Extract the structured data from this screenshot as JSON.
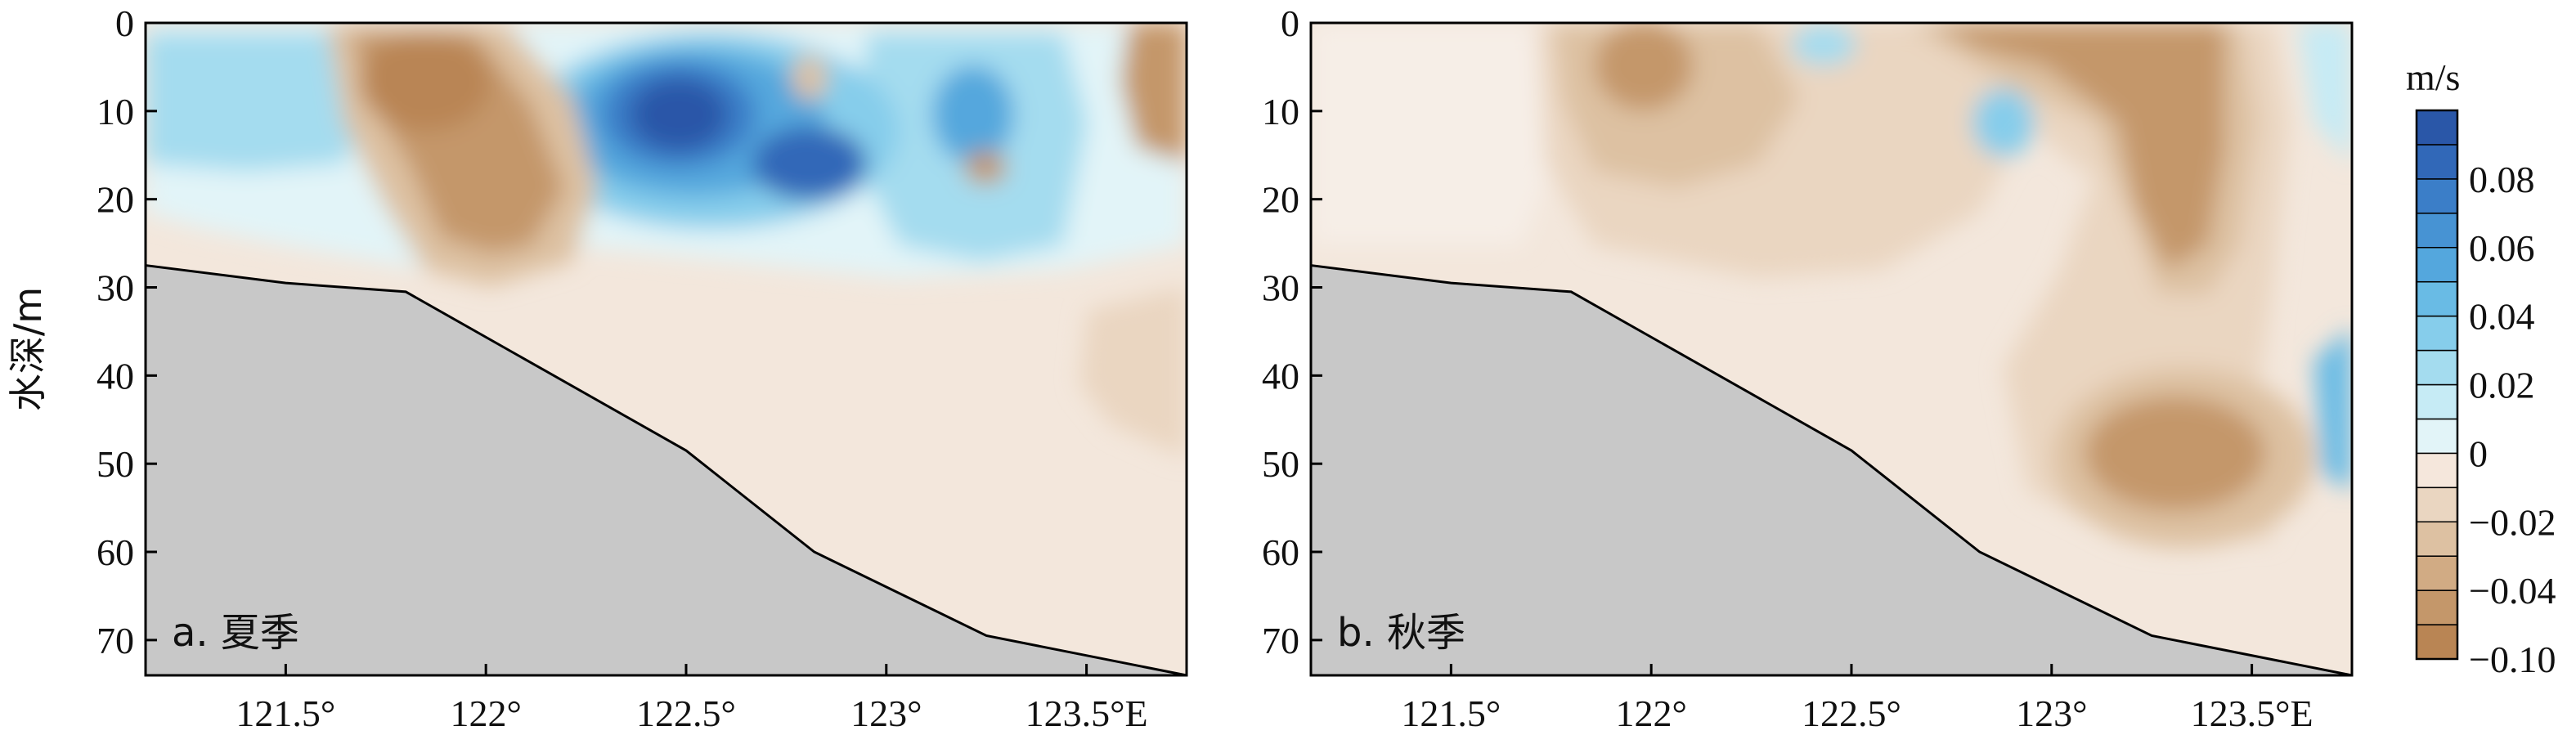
{
  "chart_data": [
    {
      "type": "heatmap",
      "panel_label": "a. 夏季",
      "ylabel": "水深/m",
      "xlabel": "",
      "xlim": [
        121.15,
        123.75
      ],
      "ylim": [
        0,
        74
      ],
      "x_tick_labels": [
        "121.5°",
        "122°",
        "122.5°",
        "123°",
        "123.5°E"
      ],
      "x_ticks": [
        121.5,
        122.0,
        122.5,
        123.0,
        123.5
      ],
      "y_tick_labels": [
        "0",
        "10",
        "20",
        "30",
        "40",
        "50",
        "60",
        "70"
      ],
      "y_ticks": [
        0,
        10,
        20,
        30,
        40,
        50,
        60,
        70
      ],
      "seafloor": {
        "x": [
          121.15,
          121.5,
          121.8,
          122.15,
          122.5,
          122.82,
          123.25,
          123.75
        ],
        "depth": [
          27.5,
          29.5,
          30.5,
          39.5,
          48.5,
          60,
          69.5,
          74
        ]
      },
      "value_unit": "m/s",
      "value_centers": [
        {
          "x": 122.5,
          "depth": 10,
          "value": 0.09
        },
        {
          "x": 122.82,
          "depth": 16,
          "value": 0.08
        },
        {
          "x": 123.25,
          "depth": 11,
          "value": 0.05
        },
        {
          "x": 122.25,
          "depth": 4,
          "value": 0.03
        },
        {
          "x": 121.25,
          "depth": 10,
          "value": 0.02
        },
        {
          "x": 123.25,
          "depth": 25,
          "value": 0.02
        },
        {
          "x": 121.95,
          "depth": 10,
          "value": -0.04
        },
        {
          "x": 122.18,
          "depth": 20,
          "value": -0.04
        },
        {
          "x": 123.7,
          "depth": 8,
          "value": -0.04
        },
        {
          "x": 123.25,
          "depth": 16,
          "value": -0.03
        },
        {
          "x": 121.9,
          "depth": 25,
          "value": -0.02
        },
        {
          "x": 123.65,
          "depth": 40,
          "value": -0.01
        }
      ]
    },
    {
      "type": "heatmap",
      "panel_label": "b. 秋季",
      "ylabel": "",
      "xlabel": "",
      "xlim": [
        121.15,
        123.75
      ],
      "ylim": [
        0,
        74
      ],
      "x_tick_labels": [
        "121.5°",
        "122°",
        "122.5°",
        "123°",
        "123.5°E"
      ],
      "x_ticks": [
        121.5,
        122.0,
        122.5,
        123.0,
        123.5
      ],
      "y_tick_labels": [
        "0",
        "10",
        "20",
        "30",
        "40",
        "50",
        "60",
        "70"
      ],
      "y_ticks": [
        0,
        10,
        20,
        30,
        40,
        50,
        60,
        70
      ],
      "seafloor": {
        "x": [
          121.15,
          121.5,
          121.8,
          122.15,
          122.5,
          122.82,
          123.25,
          123.75
        ],
        "depth": [
          27.5,
          29.5,
          30.5,
          39.5,
          48.5,
          60,
          69.5,
          74
        ]
      },
      "value_unit": "m/s",
      "value_centers": [
        {
          "x": 122.01,
          "depth": 5,
          "value": -0.04
        },
        {
          "x": 122.76,
          "depth": 3,
          "value": -0.04
        },
        {
          "x": 123.35,
          "depth": 20,
          "value": -0.04
        },
        {
          "x": 123.42,
          "depth": 49,
          "value": -0.05
        },
        {
          "x": 122.4,
          "depth": 18,
          "value": -0.02
        },
        {
          "x": 122.9,
          "depth": 11,
          "value": 0.03
        },
        {
          "x": 122.6,
          "depth": 4,
          "value": 0.02
        },
        {
          "x": 123.7,
          "depth": 46,
          "value": 0.04
        },
        {
          "x": 121.4,
          "depth": 15,
          "value": 0.005
        }
      ]
    }
  ],
  "colorbar": {
    "title": "m/s",
    "tick_labels": [
      "0.08",
      "0.06",
      "0.04",
      "0.02",
      "0",
      "−0.02",
      "−0.04",
      "−0.10"
    ],
    "levels": [
      -0.1,
      -0.05,
      -0.04,
      -0.03,
      -0.02,
      -0.01,
      0,
      0.01,
      0.02,
      0.03,
      0.04,
      0.05,
      0.06,
      0.07,
      0.08,
      0.09,
      0.1
    ],
    "colors": [
      "#b98554",
      "#c4976a",
      "#d1ab84",
      "#ddc1a2",
      "#ead6c1",
      "#f5e7dc",
      "#e2f4f8",
      "#c6ebf5",
      "#a4dcef",
      "#86cdeb",
      "#69bbe5",
      "#54a7dd",
      "#4793d3",
      "#3b7ec8",
      "#3168b8",
      "#2a57a8"
    ]
  },
  "style": {
    "seabed_color": "#c8c8c8",
    "background_color": "#f3e7dc"
  }
}
